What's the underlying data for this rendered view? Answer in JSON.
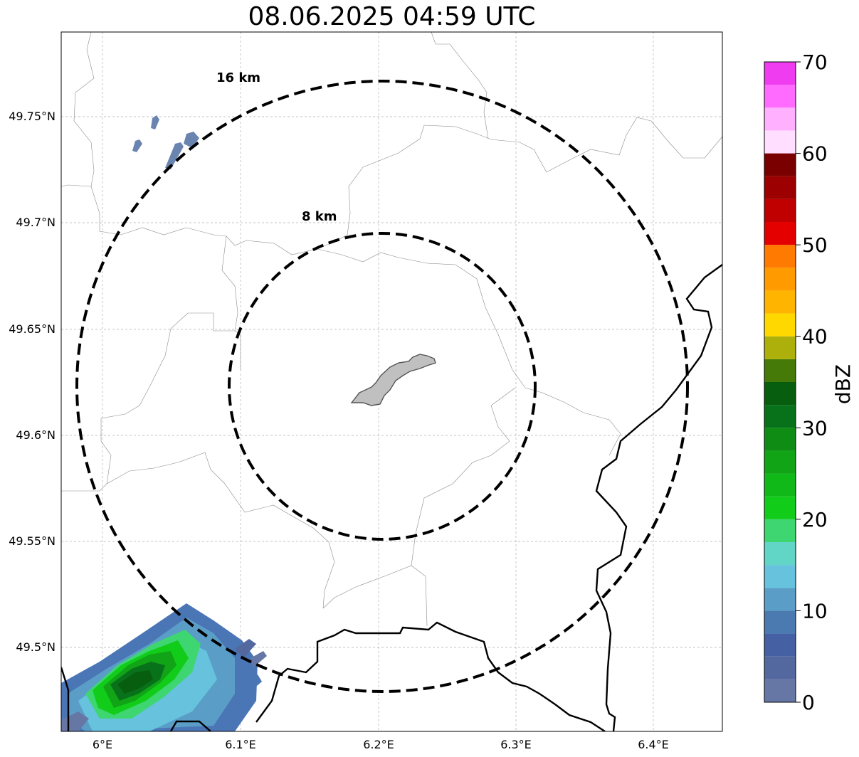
{
  "title": "08.06.2025 04:59 UTC",
  "map": {
    "lat_ticks": [
      "49.75°N",
      "49.7°N",
      "49.65°N",
      "49.6°N",
      "49.55°N",
      "49.5°N"
    ],
    "lon_ticks": [
      "6°E",
      "6.1°E",
      "6.2°E",
      "6.3°E",
      "6.4°E"
    ],
    "rings": [
      {
        "label": "16 km",
        "radius_km": 16
      },
      {
        "label": "8 km",
        "radius_km": 8
      }
    ],
    "ring_style": "dashed",
    "center_marker": "grey-urban-area",
    "grid": true
  },
  "colorbar": {
    "label": "dBZ",
    "ticks": [
      "0",
      "10",
      "20",
      "30",
      "40",
      "50",
      "60",
      "70"
    ],
    "min": 0,
    "max": 70,
    "step": 2.5,
    "colors": [
      "#6677a6",
      "#5468a0",
      "#4561a4",
      "#4a7ab0",
      "#5a9ec8",
      "#66c2dd",
      "#62d6c6",
      "#3dd670",
      "#12cc1a",
      "#10b818",
      "#10a416",
      "#0e8c14",
      "#08721a",
      "#075e0e",
      "#457a08",
      "#adb00a",
      "#ffd800",
      "#ffb400",
      "#ff9a00",
      "#ff7a00",
      "#e50000",
      "#c00000",
      "#9c0000",
      "#7a0000",
      "#ffdeff",
      "#ffb0ff",
      "#ff6aff",
      "#f03cf0"
    ]
  }
}
